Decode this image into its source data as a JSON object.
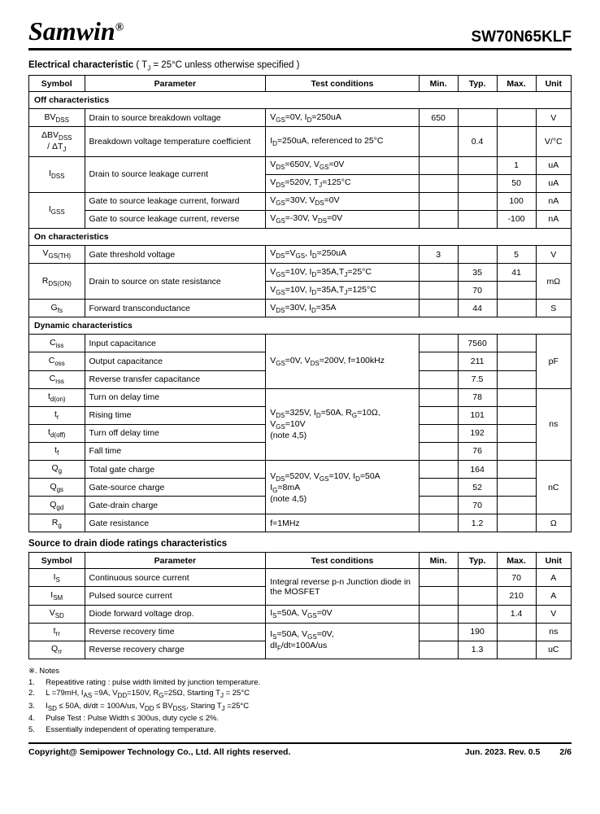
{
  "header": {
    "logo": "Samwin",
    "part": "SW70N65KLF"
  },
  "section1": {
    "title": "Electrical characteristic",
    "cond": "( T",
    "cond_sub": "J",
    "cond_after": " = 25°C unless otherwise specified )"
  },
  "table1_headers": [
    "Symbol",
    "Parameter",
    "Test conditions",
    "Min.",
    "Typ.",
    "Max.",
    "Unit"
  ],
  "groups": {
    "off": "Off characteristics",
    "on": "On characteristics",
    "dyn": "Dynamic characteristics"
  },
  "off_rows": [
    {
      "sym": "BV",
      "sub": "DSS",
      "param": "Drain to source breakdown voltage",
      "cond": "V<sub>GS</sub>=0V, I<sub>D</sub>=250uA",
      "min": "650",
      "typ": "",
      "max": "",
      "unit": "V"
    },
    {
      "sym": "ΔBV<sub>DSS</sub><br>/ ΔT<sub>J</sub>",
      "param": "Breakdown voltage temperature coefficient",
      "cond": "I<sub>D</sub>=250uA, referenced to 25°C",
      "min": "",
      "typ": "0.4",
      "max": "",
      "unit": "V/°C"
    }
  ],
  "idss": {
    "sym": "I<sub>DSS</sub>",
    "param": "Drain to source leakage current",
    "r1": {
      "cond": "V<sub>DS</sub>=650V, V<sub>GS</sub>=0V",
      "min": "",
      "typ": "",
      "max": "1",
      "unit": "uA"
    },
    "r2": {
      "cond": "V<sub>DS</sub>=520V, T<sub>J</sub>=125°C",
      "min": "",
      "typ": "",
      "max": "50",
      "unit": "uA"
    }
  },
  "igss": {
    "sym": "I<sub>GSS</sub>",
    "r1": {
      "param": "Gate to source leakage current, forward",
      "cond": "V<sub>GS</sub>=30V, V<sub>DS</sub>=0V",
      "min": "",
      "typ": "",
      "max": "100",
      "unit": "nA"
    },
    "r2": {
      "param": "Gate to source leakage current, reverse",
      "cond": "V<sub>GS</sub>=-30V, V<sub>DS</sub>=0V",
      "min": "",
      "typ": "",
      "max": "-100",
      "unit": "nA"
    }
  },
  "on_rows": [
    {
      "sym": "V<sub>GS(TH)</sub>",
      "param": "Gate threshold voltage",
      "cond": "V<sub>DS</sub>=V<sub>GS</sub>, I<sub>D</sub>=250uA",
      "min": "3",
      "typ": "",
      "max": "5",
      "unit": "V"
    }
  ],
  "rdson": {
    "sym": "R<sub>DS(ON)</sub>",
    "param": "Drain to source on state resistance",
    "r1": {
      "cond": "V<sub>GS</sub>=10V, I<sub>D</sub>=35A,T<sub>J</sub>=25°C",
      "min": "",
      "typ": "35",
      "max": "41"
    },
    "r2": {
      "cond": "V<sub>GS</sub>=10V, I<sub>D</sub>=35A,T<sub>J</sub>=125°C",
      "min": "",
      "typ": "70",
      "max": ""
    },
    "unit": "mΩ"
  },
  "gfs": {
    "sym": "G<sub>fs</sub>",
    "param": "Forward transconductance",
    "cond": "V<sub>DS</sub>=30V, I<sub>D</sub>=35A",
    "min": "",
    "typ": "44",
    "max": "",
    "unit": "S"
  },
  "cap": {
    "cond": "V<sub>GS</sub>=0V, V<sub>DS</sub>=200V, f=100kHz",
    "r1": {
      "sym": "C<sub>iss</sub>",
      "param": "Input capacitance",
      "typ": "7560"
    },
    "r2": {
      "sym": "C<sub>oss</sub>",
      "param": "Output capacitance",
      "typ": "211"
    },
    "r3": {
      "sym": "C<sub>rss</sub>",
      "param": "Reverse transfer capacitance",
      "typ": "7.5"
    },
    "unit": "pF"
  },
  "timing": {
    "cond": "V<sub>DS</sub>=325V, I<sub>D</sub>=50A, R<sub>G</sub>=10Ω, V<sub>GS</sub>=10V<br>(note 4,5)",
    "r1": {
      "sym": "t<sub>d(on)</sub>",
      "param": "Turn on delay time",
      "typ": "78"
    },
    "r2": {
      "sym": "t<sub>r</sub>",
      "param": "Rising time",
      "typ": "101"
    },
    "r3": {
      "sym": "t<sub>d(off)</sub>",
      "param": "Turn off delay time",
      "typ": "192"
    },
    "r4": {
      "sym": "t<sub>f</sub>",
      "param": "Fall time",
      "typ": "76"
    },
    "unit": "ns"
  },
  "charge": {
    "cond": "V<sub>DS</sub>=520V, V<sub>GS</sub>=10V, I<sub>D</sub>=50A<br>I<sub>G</sub>=8mA<br>(note 4,5)",
    "r1": {
      "sym": "Q<sub>g</sub>",
      "param": "Total gate charge",
      "typ": "164"
    },
    "r2": {
      "sym": "Q<sub>gs</sub>",
      "param": "Gate-source charge",
      "typ": "52"
    },
    "r3": {
      "sym": "Q<sub>gd</sub>",
      "param": "Gate-drain charge",
      "typ": "70"
    },
    "unit": "nC"
  },
  "rg": {
    "sym": "R<sub>g</sub>",
    "param": "Gate resistance",
    "cond": "f=1MHz",
    "typ": "1.2",
    "unit": "Ω"
  },
  "section2": {
    "title": "Source to drain diode ratings characteristics"
  },
  "diode_rows": [
    {
      "sym": "I<sub>S</sub>",
      "param": "Continuous source current",
      "min": "",
      "typ": "",
      "max": "70",
      "unit": "A"
    },
    {
      "sym": "I<sub>SM</sub>",
      "param": "Pulsed source current",
      "min": "",
      "typ": "",
      "max": "210",
      "unit": "A"
    },
    {
      "sym": "V<sub>SD</sub>",
      "param": "Diode forward voltage drop.",
      "cond": "I<sub>S</sub>=50A, V<sub>GS</sub>=0V",
      "min": "",
      "typ": "",
      "max": "1.4",
      "unit": "V"
    },
    {
      "sym": "t<sub>rr</sub>",
      "param": "Reverse recovery time",
      "min": "",
      "typ": "190",
      "max": "",
      "unit": "ns"
    },
    {
      "sym": "Q<sub>rr</sub>",
      "param": "Reverse recovery charge",
      "min": "",
      "typ": "1.3",
      "max": "",
      "unit": "uC"
    }
  ],
  "diode_cond1": "Integral reverse p-n Junction diode in the MOSFET",
  "diode_cond2": "I<sub>S</sub>=50A, V<sub>GS</sub>=0V,<br>dI<sub>F</sub>/dt=100A/us",
  "notes_title": "※. Notes",
  "notes": [
    "1.&nbsp;&nbsp;&nbsp;&nbsp;&nbsp;Repeatitive rating : pulse width limited by junction temperature.",
    "2.&nbsp;&nbsp;&nbsp;&nbsp;&nbsp;L =79mH, I<sub>AS</sub> =9A, V<sub>DD</sub>=150V, R<sub>G</sub>=25Ω, Starting T<sub>J</sub> = 25°C",
    "3.&nbsp;&nbsp;&nbsp;&nbsp;&nbsp;I<sub>SD</sub> ≤ 50A, di/dt = 100A/us, V<sub>DD</sub> ≤ BV<sub>DSS</sub>, Staring T<sub>J</sub> =25°C",
    "4.&nbsp;&nbsp;&nbsp;&nbsp;&nbsp;Pulse Test : Pulse Width ≤ 300us, duty cycle ≤ 2%.",
    "5.&nbsp;&nbsp;&nbsp;&nbsp;&nbsp;Essentially independent of operating temperature."
  ],
  "footer": {
    "left": "Copyright@ Semipower Technology Co., Ltd. All rights reserved.",
    "mid": "Jun. 2023. Rev. 0.5",
    "right": "2/6"
  }
}
